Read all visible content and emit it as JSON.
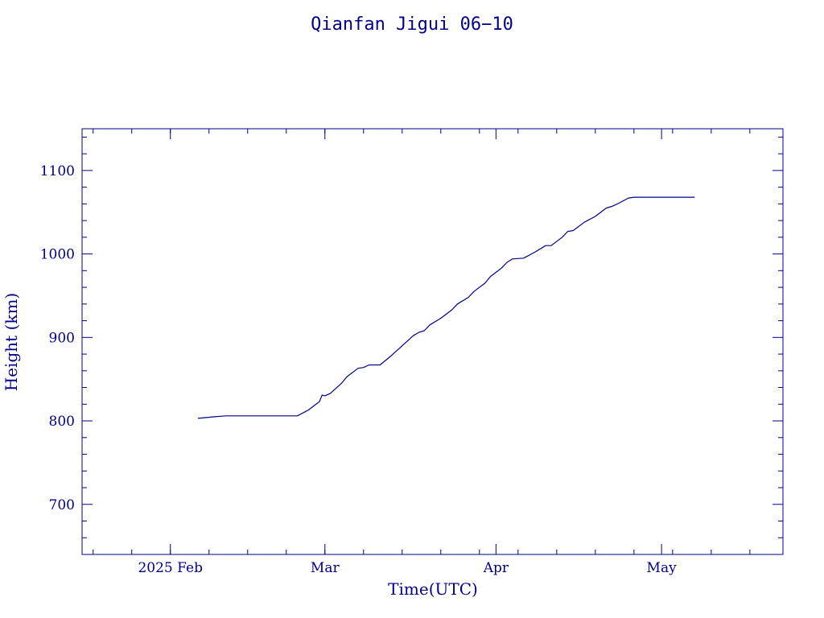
{
  "chart_data": {
    "type": "line",
    "title": "Qianfan Jigui 06−10",
    "xlabel": "Time(UTC)",
    "ylabel": "Height (km)",
    "x_unit": "date",
    "xlim": [
      "2025-01-16",
      "2025-05-23"
    ],
    "ylim": [
      640,
      1150
    ],
    "x_ticks": [
      {
        "value": "2025-02-01",
        "label": "2025 Feb"
      },
      {
        "value": "2025-03-01",
        "label": "Mar"
      },
      {
        "value": "2025-04-01",
        "label": "Apr"
      },
      {
        "value": "2025-05-01",
        "label": "May"
      }
    ],
    "y_ticks": [
      700,
      800,
      900,
      1000,
      1100
    ],
    "grid": false,
    "color": "#00008b",
    "series": [
      {
        "points": [
          [
            "2025-02-06",
            803
          ],
          [
            "2025-02-09",
            805
          ],
          [
            "2025-02-11",
            806
          ],
          [
            "2025-02-18",
            806
          ],
          [
            "2025-02-24",
            806
          ],
          [
            "2025-02-26",
            813
          ],
          [
            "2025-02-27",
            818
          ],
          [
            "2025-02-28",
            823
          ],
          [
            "2025-02-28T12:00",
            831
          ],
          [
            "2025-03-01",
            830
          ],
          [
            "2025-03-02",
            833
          ],
          [
            "2025-03-04",
            845
          ],
          [
            "2025-03-05",
            853
          ],
          [
            "2025-03-07",
            863
          ],
          [
            "2025-03-08",
            864
          ],
          [
            "2025-03-09",
            867
          ],
          [
            "2025-03-11",
            867
          ],
          [
            "2025-03-13",
            878
          ],
          [
            "2025-03-15",
            890
          ],
          [
            "2025-03-17",
            902
          ],
          [
            "2025-03-18",
            906
          ],
          [
            "2025-03-19",
            908
          ],
          [
            "2025-03-20",
            915
          ],
          [
            "2025-03-22",
            923
          ],
          [
            "2025-03-24",
            933
          ],
          [
            "2025-03-25",
            940
          ],
          [
            "2025-03-27",
            948
          ],
          [
            "2025-03-28",
            955
          ],
          [
            "2025-03-30",
            965
          ],
          [
            "2025-03-31",
            973
          ],
          [
            "2025-04-01",
            978
          ],
          [
            "2025-04-02",
            983
          ],
          [
            "2025-04-03",
            990
          ],
          [
            "2025-04-04",
            994
          ],
          [
            "2025-04-06",
            995
          ],
          [
            "2025-04-08",
            1002
          ],
          [
            "2025-04-10",
            1010
          ],
          [
            "2025-04-11",
            1010
          ],
          [
            "2025-04-13",
            1020
          ],
          [
            "2025-04-14",
            1027
          ],
          [
            "2025-04-15",
            1028
          ],
          [
            "2025-04-17",
            1038
          ],
          [
            "2025-04-19",
            1045
          ],
          [
            "2025-04-21",
            1055
          ],
          [
            "2025-04-22",
            1057
          ],
          [
            "2025-04-23",
            1060
          ],
          [
            "2025-04-25",
            1067
          ],
          [
            "2025-04-26",
            1068
          ],
          [
            "2025-05-01",
            1068
          ],
          [
            "2025-05-06",
            1068
          ],
          [
            "2025-05-07",
            1068
          ]
        ]
      }
    ]
  }
}
